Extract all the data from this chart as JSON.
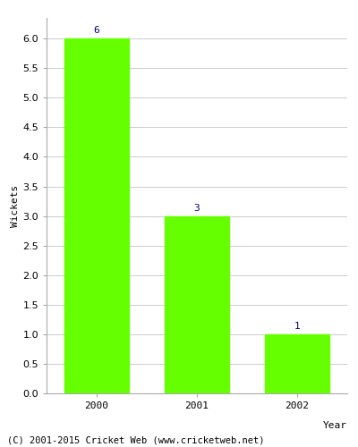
{
  "years": [
    "2000",
    "2001",
    "2002"
  ],
  "values": [
    6,
    3,
    1
  ],
  "bar_color": "#66ff00",
  "bar_width": 0.65,
  "ylabel": "Wickets",
  "xlabel": "Year",
  "ylim": [
    0,
    6.35
  ],
  "yticks": [
    0.0,
    0.5,
    1.0,
    1.5,
    2.0,
    2.5,
    3.0,
    3.5,
    4.0,
    4.5,
    5.0,
    5.5,
    6.0
  ],
  "label_color": "#000080",
  "label_fontsize": 8,
  "axis_label_fontsize": 8,
  "tick_fontsize": 8,
  "copyright_text": "(C) 2001-2015 Cricket Web (www.cricketweb.net)",
  "copyright_fontsize": 7.5,
  "background_color": "#ffffff",
  "grid_color": "#cccccc",
  "spine_color": "#aaaaaa"
}
